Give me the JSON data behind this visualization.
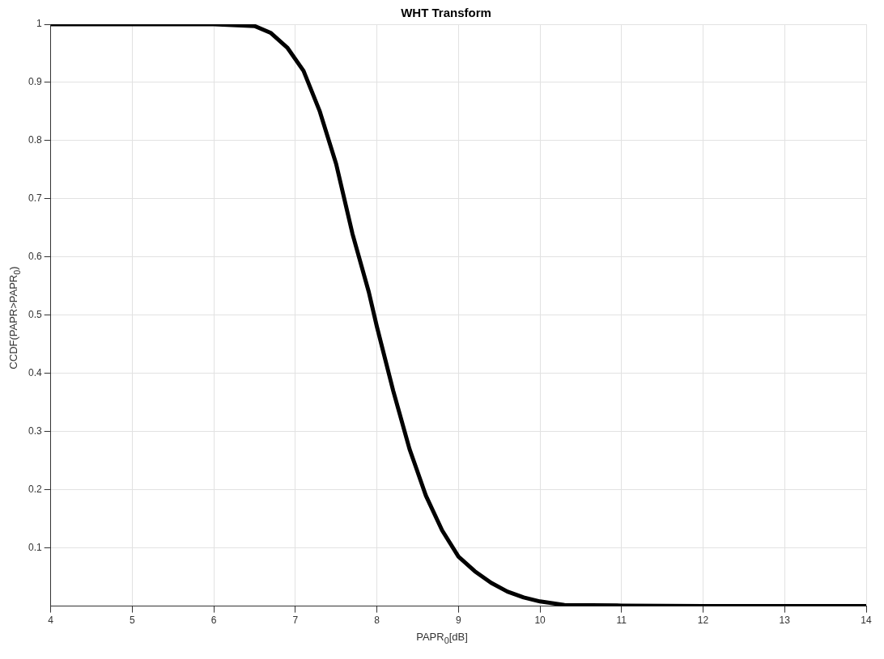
{
  "chart_data": {
    "type": "line",
    "title": "WHT Transform",
    "xlabel": "PAPR$_{0}$[dB]",
    "ylabel": "CCDF(PAPR>PAPR$_{0}$)",
    "x": [
      4,
      5,
      6,
      6.5,
      6.7,
      6.9,
      7.1,
      7.3,
      7.5,
      7.7,
      7.9,
      8.0,
      8.2,
      8.4,
      8.6,
      8.8,
      9.0,
      9.2,
      9.4,
      9.6,
      9.8,
      10.0,
      10.3,
      11,
      12,
      13,
      14
    ],
    "series": [
      {
        "color": "#000000",
        "values": [
          1,
          1,
          1,
          0.997,
          0.985,
          0.96,
          0.92,
          0.85,
          0.76,
          0.64,
          0.54,
          0.48,
          0.37,
          0.27,
          0.19,
          0.13,
          0.085,
          0.06,
          0.04,
          0.025,
          0.015,
          0.008,
          0.002,
          0.001,
          0,
          0,
          0
        ]
      }
    ],
    "xlim": [
      4,
      14
    ],
    "xticks": [
      4,
      5,
      6,
      7,
      8,
      9,
      10,
      11,
      12,
      13,
      14
    ],
    "ylim": [
      0,
      1
    ],
    "yticks": [
      0.1,
      0.2,
      0.3,
      0.4,
      0.5,
      0.6,
      0.7,
      0.8,
      0.9,
      1
    ],
    "grid": true,
    "legend": false,
    "marker": "none",
    "line_style": "solid"
  }
}
